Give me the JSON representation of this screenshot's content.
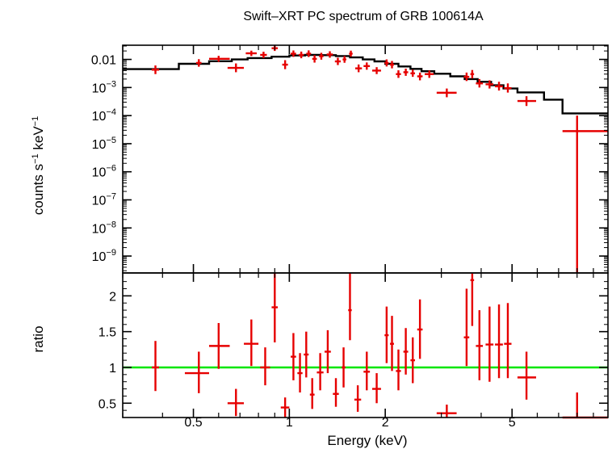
{
  "chart_data": {
    "type": "scatter",
    "title": "Swift–XRT PC spectrum of GRB 100614A",
    "xlabel": "Energy (keV)",
    "x_scale": "log",
    "xlim": [
      0.3,
      10
    ],
    "x_ticks": [
      {
        "value": 0.5,
        "label": "0.5"
      },
      {
        "value": 1,
        "label": "1"
      },
      {
        "value": 2,
        "label": "2"
      },
      {
        "value": 5,
        "label": "5"
      }
    ],
    "colors": {
      "data": "#e60000",
      "model": "#000000",
      "unity": "#00e600"
    },
    "panels": [
      {
        "name": "spectrum",
        "ylabel": {
          "base": "counts s",
          "exp1": "−1",
          "mid": " keV",
          "exp2": "−1"
        },
        "y_scale": "log",
        "ylim": [
          2.5e-10,
          0.032
        ],
        "y_ticks": [
          {
            "value": 0.01,
            "base": "0.01",
            "exp": ""
          },
          {
            "value": 0.001,
            "base": "10",
            "exp": "−3"
          },
          {
            "value": 0.0001,
            "base": "10",
            "exp": "−4"
          },
          {
            "value": 1e-05,
            "base": "10",
            "exp": "−5"
          },
          {
            "value": 1e-06,
            "base": "10",
            "exp": "−6"
          },
          {
            "value": 1e-07,
            "base": "10",
            "exp": "−7"
          },
          {
            "value": 1e-08,
            "base": "10",
            "exp": "−8"
          },
          {
            "value": 1e-09,
            "base": "10",
            "exp": "−9"
          }
        ],
        "data": [
          {
            "x": 0.38,
            "xlo": 0.37,
            "xhi": 0.39,
            "y": 0.0043,
            "ylo": 0.003,
            "yhi": 0.0061
          },
          {
            "x": 0.52,
            "xlo": 0.51,
            "xhi": 0.53,
            "y": 0.0075,
            "ylo": 0.0055,
            "yhi": 0.0102
          },
          {
            "x": 0.6,
            "xlo": 0.56,
            "xhi": 0.65,
            "y": 0.0105,
            "ylo": 0.0082,
            "yhi": 0.0134
          },
          {
            "x": 0.68,
            "xlo": 0.64,
            "xhi": 0.72,
            "y": 0.005,
            "ylo": 0.0035,
            "yhi": 0.0072
          },
          {
            "x": 0.76,
            "xlo": 0.73,
            "xhi": 0.79,
            "y": 0.0165,
            "ylo": 0.0132,
            "yhi": 0.0205
          },
          {
            "x": 0.83,
            "xlo": 0.81,
            "xhi": 0.85,
            "y": 0.0145,
            "ylo": 0.0112,
            "yhi": 0.0188
          },
          {
            "x": 0.9,
            "xlo": 0.88,
            "xhi": 0.92,
            "y": 0.025,
            "ylo": 0.02,
            "yhi": 0.031
          },
          {
            "x": 0.97,
            "xlo": 0.95,
            "xhi": 0.99,
            "y": 0.0065,
            "ylo": 0.0045,
            "yhi": 0.0094
          },
          {
            "x": 1.03,
            "xlo": 1.01,
            "xhi": 1.05,
            "y": 0.016,
            "ylo": 0.0123,
            "yhi": 0.0208
          },
          {
            "x": 1.09,
            "xlo": 1.07,
            "xhi": 1.11,
            "y": 0.0145,
            "ylo": 0.011,
            "yhi": 0.019
          },
          {
            "x": 1.15,
            "xlo": 1.13,
            "xhi": 1.17,
            "y": 0.016,
            "ylo": 0.0122,
            "yhi": 0.021
          },
          {
            "x": 1.2,
            "xlo": 1.18,
            "xhi": 1.22,
            "y": 0.0105,
            "ylo": 0.0077,
            "yhi": 0.0142
          },
          {
            "x": 1.26,
            "xlo": 1.24,
            "xhi": 1.28,
            "y": 0.013,
            "ylo": 0.0098,
            "yhi": 0.0172
          },
          {
            "x": 1.34,
            "xlo": 1.31,
            "xhi": 1.37,
            "y": 0.015,
            "ylo": 0.0115,
            "yhi": 0.0195
          },
          {
            "x": 1.42,
            "xlo": 1.39,
            "xhi": 1.45,
            "y": 0.0085,
            "ylo": 0.0063,
            "yhi": 0.0115
          },
          {
            "x": 1.49,
            "xlo": 1.47,
            "xhi": 1.51,
            "y": 0.01,
            "ylo": 0.0076,
            "yhi": 0.0132
          },
          {
            "x": 1.56,
            "xlo": 1.54,
            "xhi": 1.58,
            "y": 0.016,
            "ylo": 0.0125,
            "yhi": 0.0205
          },
          {
            "x": 1.65,
            "xlo": 1.61,
            "xhi": 1.69,
            "y": 0.0048,
            "ylo": 0.0035,
            "yhi": 0.0066
          },
          {
            "x": 1.75,
            "xlo": 1.71,
            "xhi": 1.79,
            "y": 0.0058,
            "ylo": 0.0043,
            "yhi": 0.0078
          },
          {
            "x": 1.88,
            "xlo": 1.82,
            "xhi": 1.94,
            "y": 0.004,
            "ylo": 0.003,
            "yhi": 0.0053
          },
          {
            "x": 2.02,
            "xlo": 1.99,
            "xhi": 2.05,
            "y": 0.0075,
            "ylo": 0.0056,
            "yhi": 0.01
          },
          {
            "x": 2.1,
            "xlo": 2.07,
            "xhi": 2.13,
            "y": 0.0065,
            "ylo": 0.0048,
            "yhi": 0.0088
          },
          {
            "x": 2.2,
            "xlo": 2.16,
            "xhi": 2.24,
            "y": 0.003,
            "ylo": 0.0022,
            "yhi": 0.0041
          },
          {
            "x": 2.32,
            "xlo": 2.28,
            "xhi": 2.36,
            "y": 0.0035,
            "ylo": 0.0026,
            "yhi": 0.0047
          },
          {
            "x": 2.44,
            "xlo": 2.4,
            "xhi": 2.48,
            "y": 0.0032,
            "ylo": 0.0024,
            "yhi": 0.0043
          },
          {
            "x": 2.57,
            "xlo": 2.52,
            "xhi": 2.62,
            "y": 0.0025,
            "ylo": 0.0018,
            "yhi": 0.0034
          },
          {
            "x": 2.75,
            "xlo": 2.66,
            "xhi": 2.84,
            "y": 0.003,
            "ylo": 0.0022,
            "yhi": 0.004
          },
          {
            "x": 3.12,
            "xlo": 2.9,
            "xhi": 3.35,
            "y": 0.00065,
            "ylo": 0.00045,
            "yhi": 0.00092
          },
          {
            "x": 3.6,
            "xlo": 3.53,
            "xhi": 3.67,
            "y": 0.0024,
            "ylo": 0.0017,
            "yhi": 0.0034
          },
          {
            "x": 3.75,
            "xlo": 3.7,
            "xhi": 3.8,
            "y": 0.003,
            "ylo": 0.0021,
            "yhi": 0.0042
          },
          {
            "x": 3.95,
            "xlo": 3.85,
            "xhi": 4.05,
            "y": 0.0014,
            "ylo": 0.001,
            "yhi": 0.002
          },
          {
            "x": 4.25,
            "xlo": 4.13,
            "xhi": 4.37,
            "y": 0.0013,
            "ylo": 0.00092,
            "yhi": 0.0018
          },
          {
            "x": 4.55,
            "xlo": 4.42,
            "xhi": 4.68,
            "y": 0.0011,
            "ylo": 0.00078,
            "yhi": 0.0016
          },
          {
            "x": 4.85,
            "xlo": 4.72,
            "xhi": 4.98,
            "y": 0.00095,
            "ylo": 0.00066,
            "yhi": 0.0014
          },
          {
            "x": 5.55,
            "xlo": 5.2,
            "xhi": 5.95,
            "y": 0.00033,
            "ylo": 0.00022,
            "yhi": 0.00049
          },
          {
            "x": 8.0,
            "xlo": 7.2,
            "xhi": 10.0,
            "y": 2.8e-05,
            "ylo": 2.5e-10,
            "yhi": 0.0001
          }
        ],
        "model": {
          "edges": [
            0.3,
            0.45,
            0.56,
            0.66,
            0.74,
            0.88,
            1.0,
            1.12,
            1.26,
            1.4,
            1.55,
            1.7,
            1.85,
            2.0,
            2.2,
            2.4,
            2.6,
            2.85,
            3.2,
            3.55,
            3.9,
            4.3,
            4.7,
            5.2,
            6.3,
            7.2,
            10.0
          ],
          "values": [
            0.0045,
            0.007,
            0.0086,
            0.01,
            0.0112,
            0.0125,
            0.0138,
            0.0145,
            0.0142,
            0.0132,
            0.0118,
            0.01,
            0.0085,
            0.007,
            0.0056,
            0.0046,
            0.0038,
            0.0031,
            0.0025,
            0.002,
            0.0016,
            0.0012,
            0.00092,
            0.00067,
            0.00037,
            0.00012
          ]
        }
      },
      {
        "name": "ratio",
        "ylabel": "ratio",
        "y_scale": "linear",
        "ylim": [
          0.3,
          2.32
        ],
        "y_ticks": [
          {
            "value": 0.5,
            "label": "0.5"
          },
          {
            "value": 1,
            "label": "1"
          },
          {
            "value": 1.5,
            "label": "1.5"
          },
          {
            "value": 2,
            "label": "2"
          }
        ],
        "unity": 1,
        "data": [
          {
            "x": 0.38,
            "xlo": 0.37,
            "xhi": 0.39,
            "y": 1.0,
            "ylo": 0.67,
            "yhi": 1.37
          },
          {
            "x": 0.52,
            "xlo": 0.47,
            "xhi": 0.56,
            "y": 0.92,
            "ylo": 0.64,
            "yhi": 1.22
          },
          {
            "x": 0.6,
            "xlo": 0.56,
            "xhi": 0.65,
            "y": 1.3,
            "ylo": 0.98,
            "yhi": 1.62
          },
          {
            "x": 0.68,
            "xlo": 0.64,
            "xhi": 0.72,
            "y": 0.5,
            "ylo": 0.32,
            "yhi": 0.7
          },
          {
            "x": 0.76,
            "xlo": 0.72,
            "xhi": 0.8,
            "y": 1.33,
            "ylo": 1.02,
            "yhi": 1.67
          },
          {
            "x": 0.84,
            "xlo": 0.81,
            "xhi": 0.87,
            "y": 1.0,
            "ylo": 0.75,
            "yhi": 1.28
          },
          {
            "x": 0.9,
            "xlo": 0.88,
            "xhi": 0.92,
            "y": 1.84,
            "ylo": 1.35,
            "yhi": 2.32
          },
          {
            "x": 0.97,
            "xlo": 0.94,
            "xhi": 1.0,
            "y": 0.44,
            "ylo": 0.3,
            "yhi": 0.58
          },
          {
            "x": 1.03,
            "xlo": 1.01,
            "xhi": 1.05,
            "y": 1.15,
            "ylo": 0.82,
            "yhi": 1.48
          },
          {
            "x": 1.08,
            "xlo": 1.06,
            "xhi": 1.1,
            "y": 0.92,
            "ylo": 0.65,
            "yhi": 1.2
          },
          {
            "x": 1.13,
            "xlo": 1.11,
            "xhi": 1.15,
            "y": 1.18,
            "ylo": 0.86,
            "yhi": 1.5
          },
          {
            "x": 1.18,
            "xlo": 1.16,
            "xhi": 1.2,
            "y": 0.62,
            "ylo": 0.42,
            "yhi": 0.85
          },
          {
            "x": 1.25,
            "xlo": 1.22,
            "xhi": 1.28,
            "y": 0.93,
            "ylo": 0.68,
            "yhi": 1.2
          },
          {
            "x": 1.32,
            "xlo": 1.29,
            "xhi": 1.35,
            "y": 1.22,
            "ylo": 0.92,
            "yhi": 1.52
          },
          {
            "x": 1.4,
            "xlo": 1.37,
            "xhi": 1.43,
            "y": 0.63,
            "ylo": 0.45,
            "yhi": 0.85
          },
          {
            "x": 1.48,
            "xlo": 1.46,
            "xhi": 1.5,
            "y": 1.0,
            "ylo": 0.72,
            "yhi": 1.28
          },
          {
            "x": 1.55,
            "xlo": 1.53,
            "xhi": 1.57,
            "y": 1.8,
            "ylo": 1.38,
            "yhi": 2.32
          },
          {
            "x": 1.64,
            "xlo": 1.6,
            "xhi": 1.68,
            "y": 0.55,
            "ylo": 0.38,
            "yhi": 0.75
          },
          {
            "x": 1.75,
            "xlo": 1.71,
            "xhi": 1.79,
            "y": 0.94,
            "ylo": 0.68,
            "yhi": 1.22
          },
          {
            "x": 1.88,
            "xlo": 1.82,
            "xhi": 1.94,
            "y": 0.7,
            "ylo": 0.5,
            "yhi": 0.92
          },
          {
            "x": 2.02,
            "xlo": 1.99,
            "xhi": 2.05,
            "y": 1.45,
            "ylo": 1.06,
            "yhi": 1.85
          },
          {
            "x": 2.1,
            "xlo": 2.07,
            "xhi": 2.13,
            "y": 1.33,
            "ylo": 0.95,
            "yhi": 1.72
          },
          {
            "x": 2.2,
            "xlo": 2.16,
            "xhi": 2.24,
            "y": 0.95,
            "ylo": 0.68,
            "yhi": 1.25
          },
          {
            "x": 2.32,
            "xlo": 2.28,
            "xhi": 2.36,
            "y": 1.22,
            "ylo": 0.9,
            "yhi": 1.55
          },
          {
            "x": 2.44,
            "xlo": 2.4,
            "xhi": 2.48,
            "y": 1.1,
            "ylo": 0.78,
            "yhi": 1.42
          },
          {
            "x": 2.57,
            "xlo": 2.52,
            "xhi": 2.62,
            "y": 1.53,
            "ylo": 1.12,
            "yhi": 1.95
          },
          {
            "x": 3.12,
            "xlo": 2.9,
            "xhi": 3.35,
            "y": 0.36,
            "ylo": 0.3,
            "yhi": 0.48
          },
          {
            "x": 3.6,
            "xlo": 3.53,
            "xhi": 3.67,
            "y": 1.42,
            "ylo": 1.02,
            "yhi": 2.1
          },
          {
            "x": 3.75,
            "xlo": 3.7,
            "xhi": 3.8,
            "y": 2.22,
            "ylo": 1.58,
            "yhi": 2.32
          },
          {
            "x": 3.95,
            "xlo": 3.85,
            "xhi": 4.05,
            "y": 1.3,
            "ylo": 0.82,
            "yhi": 1.8
          },
          {
            "x": 4.25,
            "xlo": 4.13,
            "xhi": 4.37,
            "y": 1.32,
            "ylo": 0.8,
            "yhi": 1.85
          },
          {
            "x": 4.55,
            "xlo": 4.42,
            "xhi": 4.68,
            "y": 1.32,
            "ylo": 0.85,
            "yhi": 1.88
          },
          {
            "x": 4.85,
            "xlo": 4.72,
            "xhi": 4.98,
            "y": 1.33,
            "ylo": 0.85,
            "yhi": 1.9
          },
          {
            "x": 5.55,
            "xlo": 5.2,
            "xhi": 5.95,
            "y": 0.86,
            "ylo": 0.55,
            "yhi": 1.22
          },
          {
            "x": 8.0,
            "xlo": 7.2,
            "xhi": 10.0,
            "y": 0.22,
            "ylo": 0.3,
            "yhi": 0.65
          }
        ]
      }
    ]
  }
}
